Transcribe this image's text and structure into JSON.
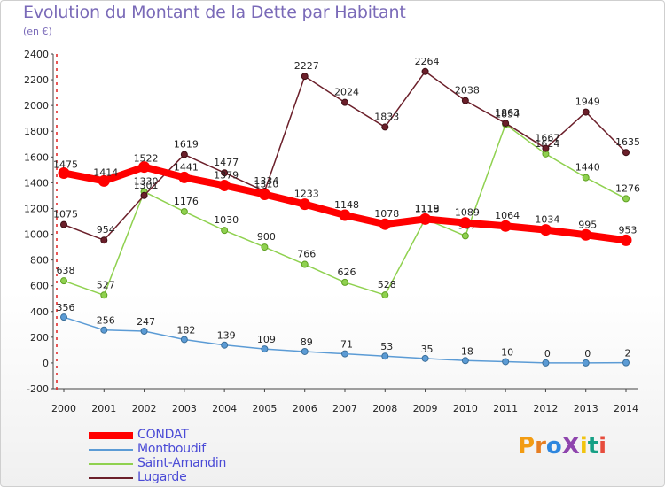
{
  "title": "Evolution du Montant de la Dette par Habitant",
  "subtitle": "(en €)",
  "logo_text": "ProXiti",
  "colors": {
    "CONDAT": "#ff0000",
    "Montboudif": "#5b9bd5",
    "Saint-Amandin": "#8fd14f",
    "Lugarde": "#6b1f2a",
    "legend_text": "#4b4bd6",
    "title": "#7a6ab8"
  },
  "chart_data": {
    "type": "line",
    "title": "Evolution du Montant de la Dette par Habitant",
    "ylabel": "(en €)",
    "xlabel": "",
    "x": [
      2000,
      2001,
      2002,
      2003,
      2004,
      2005,
      2006,
      2007,
      2008,
      2009,
      2010,
      2011,
      2012,
      2013,
      2014
    ],
    "ylim": [
      -200,
      2400
    ],
    "yticks": [
      -200,
      0,
      200,
      400,
      600,
      800,
      1000,
      1200,
      1400,
      1600,
      1800,
      2000,
      2200,
      2400
    ],
    "grid": false,
    "legend_position": "bottom-left",
    "series": [
      {
        "name": "CONDAT",
        "values": [
          1475,
          1414,
          1522,
          1441,
          1379,
          1310,
          1233,
          1148,
          1078,
          1118,
          1089,
          1064,
          1034,
          995,
          953
        ]
      },
      {
        "name": "Montboudif",
        "values": [
          356,
          256,
          247,
          182,
          139,
          109,
          89,
          71,
          53,
          35,
          18,
          10,
          0,
          0,
          2
        ]
      },
      {
        "name": "Saint-Amandin",
        "values": [
          638,
          527,
          1330,
          1176,
          1030,
          900,
          766,
          626,
          528,
          1119,
          987,
          1854,
          1624,
          1440,
          1276
        ]
      },
      {
        "name": "Lugarde",
        "values": [
          1075,
          954,
          1301,
          1619,
          1477,
          1334,
          2227,
          2024,
          1833,
          2264,
          2038,
          1863,
          1667,
          1949,
          1635
        ]
      }
    ]
  }
}
